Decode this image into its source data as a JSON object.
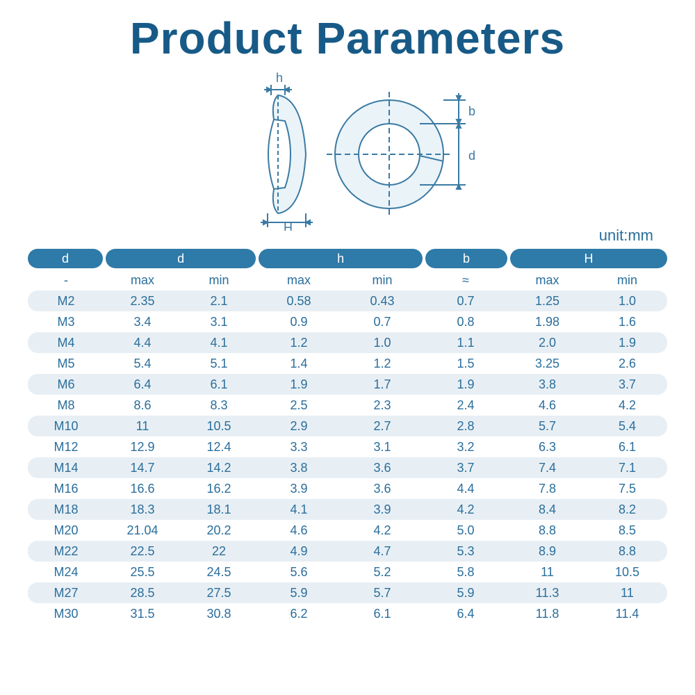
{
  "title": "Product Parameters",
  "unit_label": "unit:mm",
  "diagram": {
    "labels": {
      "h": "h",
      "H": "H",
      "b": "b",
      "d": "d"
    },
    "stroke": "#3a7aa3",
    "fill": "#cfe4ef"
  },
  "table": {
    "header_pill_bg": "#2e7aa8",
    "header_pill_fg": "#ffffff",
    "row_shade_bg": "#e8eff4",
    "text_color": "#2a6e9c",
    "group_headers": [
      "d",
      "d",
      "h",
      "b",
      "H"
    ],
    "sub_headers": [
      "-",
      "max",
      "min",
      "max",
      "min",
      "≈",
      "max",
      "min"
    ],
    "rows": [
      [
        "M2",
        "2.35",
        "2.1",
        "0.58",
        "0.43",
        "0.7",
        "1.25",
        "1.0"
      ],
      [
        "M3",
        "3.4",
        "3.1",
        "0.9",
        "0.7",
        "0.8",
        "1.98",
        "1.6"
      ],
      [
        "M4",
        "4.4",
        "4.1",
        "1.2",
        "1.0",
        "1.1",
        "2.0",
        "1.9"
      ],
      [
        "M5",
        "5.4",
        "5.1",
        "1.4",
        "1.2",
        "1.5",
        "3.25",
        "2.6"
      ],
      [
        "M6",
        "6.4",
        "6.1",
        "1.9",
        "1.7",
        "1.9",
        "3.8",
        "3.7"
      ],
      [
        "M8",
        "8.6",
        "8.3",
        "2.5",
        "2.3",
        "2.4",
        "4.6",
        "4.2"
      ],
      [
        "M10",
        "11",
        "10.5",
        "2.9",
        "2.7",
        "2.8",
        "5.7",
        "5.4"
      ],
      [
        "M12",
        "12.9",
        "12.4",
        "3.3",
        "3.1",
        "3.2",
        "6.3",
        "6.1"
      ],
      [
        "M14",
        "14.7",
        "14.2",
        "3.8",
        "3.6",
        "3.7",
        "7.4",
        "7.1"
      ],
      [
        "M16",
        "16.6",
        "16.2",
        "3.9",
        "3.6",
        "4.4",
        "7.8",
        "7.5"
      ],
      [
        "M18",
        "18.3",
        "18.1",
        "4.1",
        "3.9",
        "4.2",
        "8.4",
        "8.2"
      ],
      [
        "M20",
        "21.04",
        "20.2",
        "4.6",
        "4.2",
        "5.0",
        "8.8",
        "8.5"
      ],
      [
        "M22",
        "22.5",
        "22",
        "4.9",
        "4.7",
        "5.3",
        "8.9",
        "8.8"
      ],
      [
        "M24",
        "25.5",
        "24.5",
        "5.6",
        "5.2",
        "5.8",
        "11",
        "10.5"
      ],
      [
        "M27",
        "28.5",
        "27.5",
        "5.9",
        "5.7",
        "5.9",
        "11.3",
        "11"
      ],
      [
        "M30",
        "31.5",
        "30.8",
        "6.2",
        "6.1",
        "6.4",
        "11.8",
        "11.4"
      ]
    ]
  }
}
